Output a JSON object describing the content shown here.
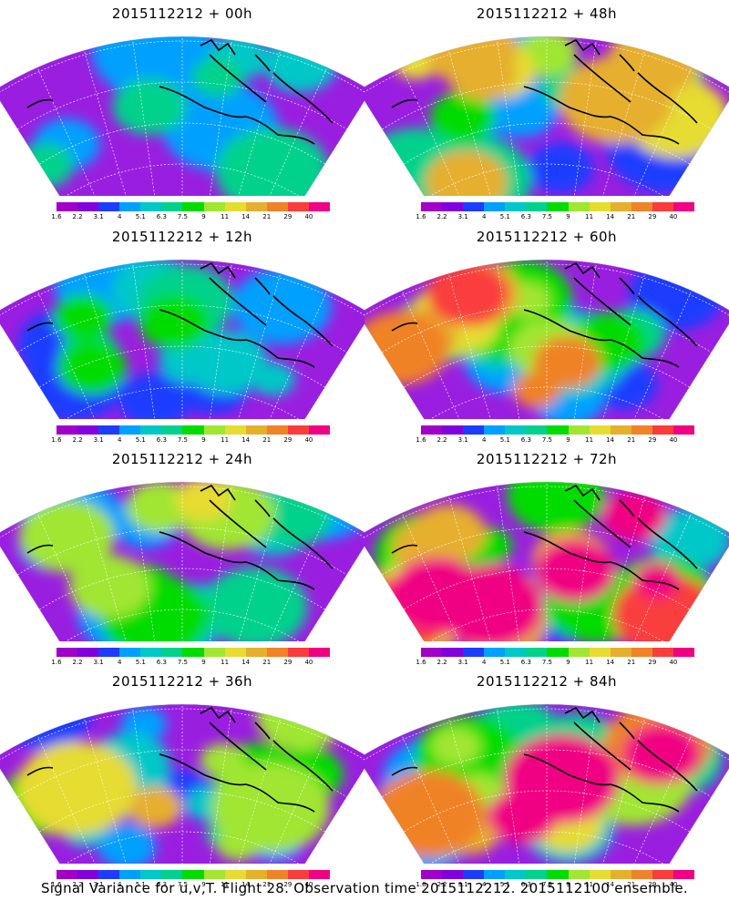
{
  "panels": [
    {
      "title": "2015112212 + 00h"
    },
    {
      "title": "2015112212 + 48h"
    },
    {
      "title": "2015112212 + 12h"
    },
    {
      "title": "2015112212 + 60h"
    },
    {
      "title": "2015112212 + 24h"
    },
    {
      "title": "2015112212 + 72h"
    },
    {
      "title": "2015112212 + 36h"
    },
    {
      "title": "2015112212 + 84h"
    }
  ],
  "colorbar": {
    "labels": [
      "1.6",
      "2.2",
      "3.1",
      "4",
      "5.1",
      "6.3",
      "7.5",
      "9",
      "11",
      "14",
      "21",
      "29",
      "40"
    ],
    "colors": [
      "#a000c8",
      "#8200dc",
      "#1e3cff",
      "#00a0ff",
      "#00c8c8",
      "#00d28c",
      "#00dc00",
      "#a0e632",
      "#e6dc32",
      "#e6af2d",
      "#f08228",
      "#fa3c3c",
      "#f00082"
    ]
  },
  "footer": "Signal Variance for u,v,T. Flight 28. Observation time 2015112212. 2015112100 ensemble."
}
